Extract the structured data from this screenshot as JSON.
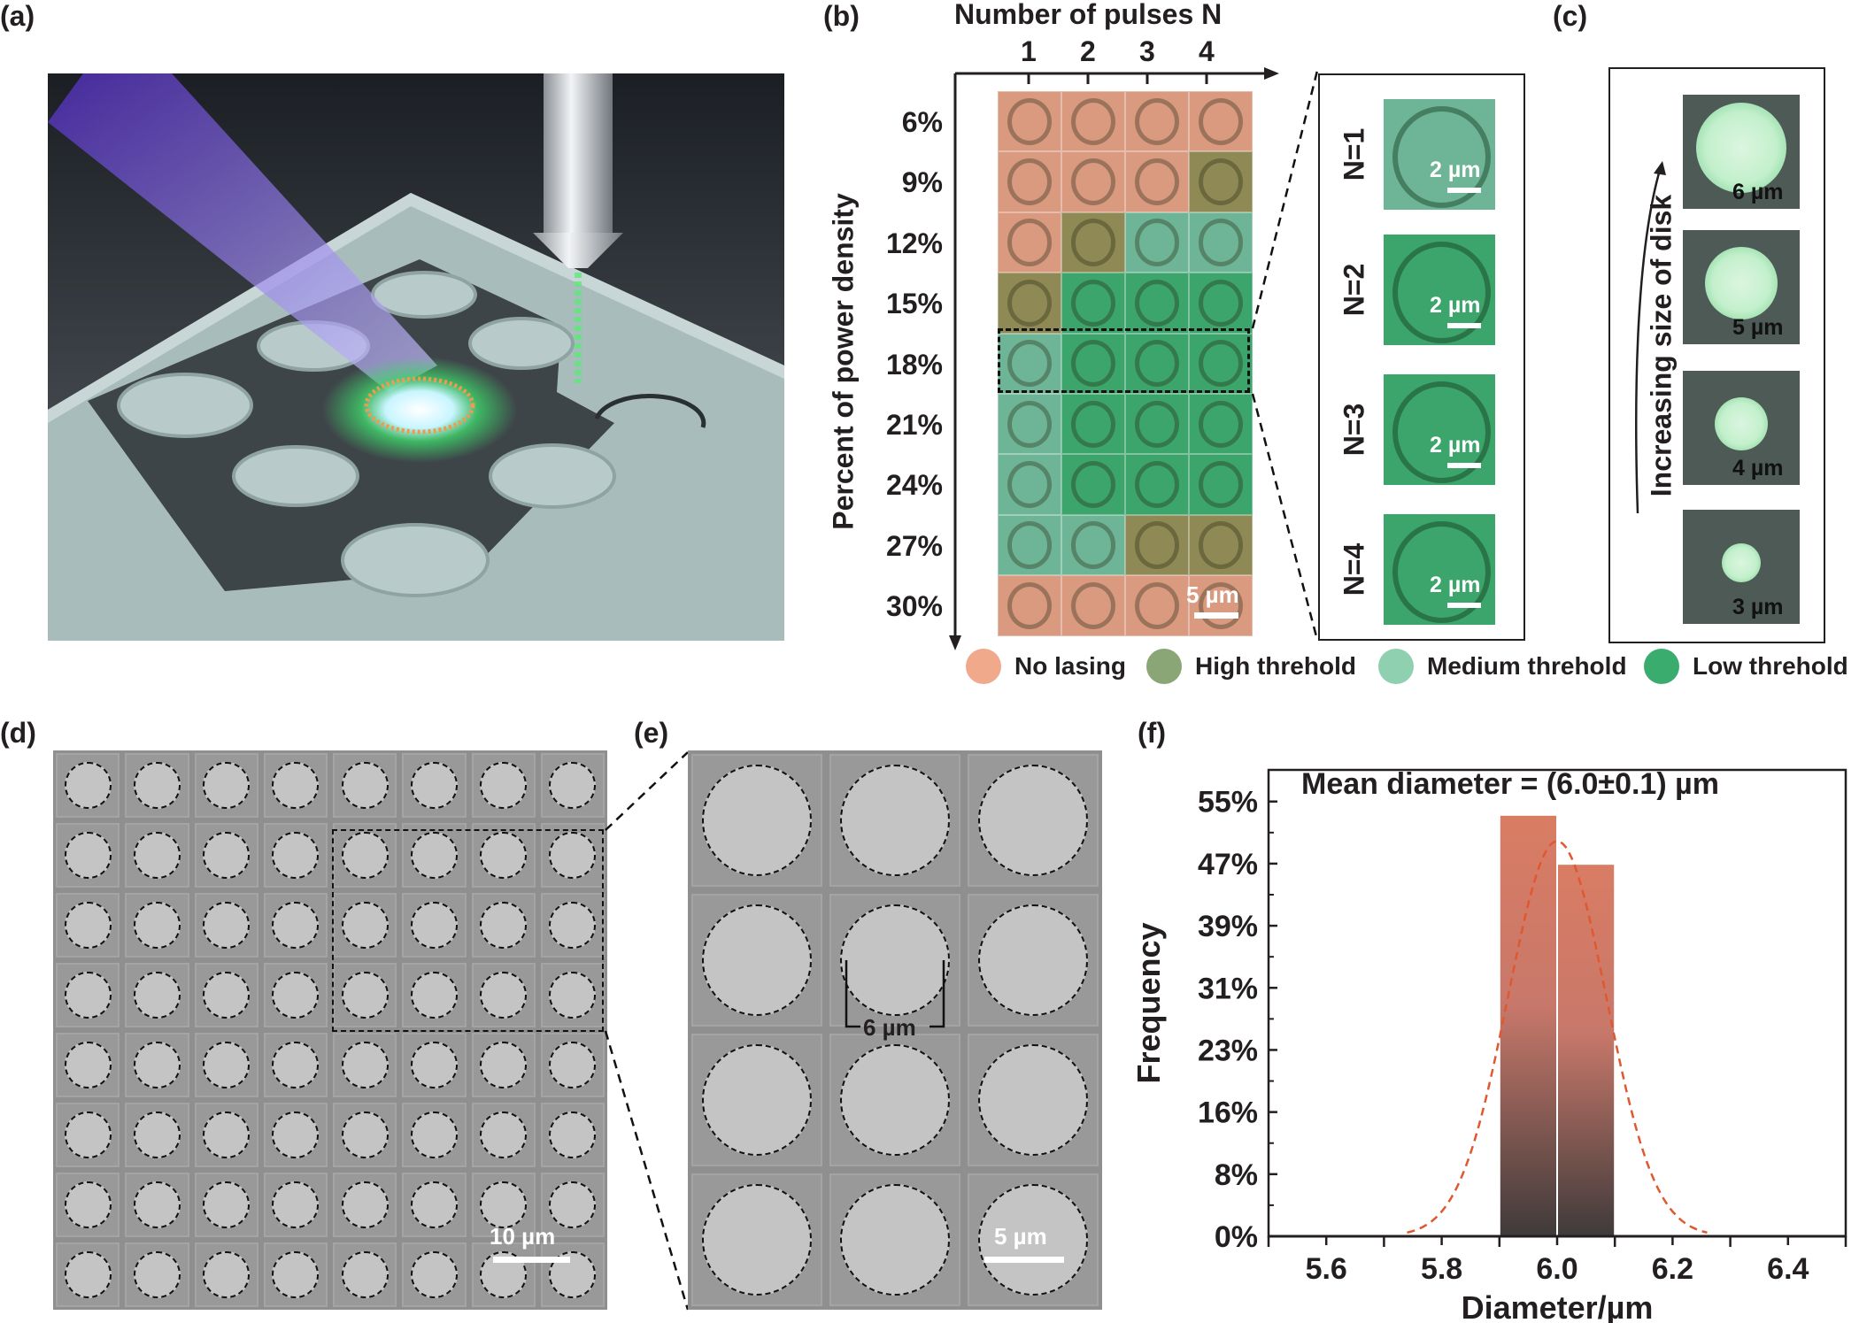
{
  "panels": {
    "a": {
      "label": "(a)"
    },
    "b": {
      "label": "(b)",
      "x_axis_title": "Number of  pulses N",
      "columns": [
        "1",
        "2",
        "3",
        "4"
      ],
      "y_axis_title": "Percent of power density",
      "rows": [
        "6%",
        "9%",
        "12%",
        "15%",
        "18%",
        "21%",
        "24%",
        "27%",
        "30%"
      ],
      "grid_states": [
        [
          "N",
          "N",
          "N",
          "N"
        ],
        [
          "N",
          "N",
          "N",
          "H"
        ],
        [
          "N",
          "H",
          "M",
          "M"
        ],
        [
          "H",
          "L",
          "L",
          "L"
        ],
        [
          "M",
          "L",
          "L",
          "L"
        ],
        [
          "M",
          "L",
          "L",
          "L"
        ],
        [
          "M",
          "L",
          "L",
          "L"
        ],
        [
          "M",
          "M",
          "H",
          "H"
        ],
        [
          "N",
          "N",
          "N",
          "N"
        ]
      ],
      "state_colors": {
        "N": "#d99a80",
        "H": "#8f8a55",
        "M": "#6db596",
        "L": "#3ba56b"
      },
      "scale_label": "5 µm",
      "inset": [
        {
          "label": "N=1",
          "scale": "2 µm",
          "color": "#6db596"
        },
        {
          "label": "N=2",
          "scale": "2 µm",
          "color": "#3ba56b"
        },
        {
          "label": "N=3",
          "scale": "2 µm",
          "color": "#3ba56b"
        },
        {
          "label": "N=4",
          "scale": "2 µm",
          "color": "#3ba56b"
        }
      ]
    },
    "c": {
      "label": "(c)",
      "axis_text": "Increasing size of disk",
      "images": [
        {
          "size": "6 µm",
          "spot": 0.78
        },
        {
          "size": "5 µm",
          "spot": 0.62
        },
        {
          "size": "4 µm",
          "spot": 0.46
        },
        {
          "size": "3 µm",
          "spot": 0.34
        }
      ]
    },
    "legend": [
      {
        "label": "No lasing",
        "color": "#f0a98a"
      },
      {
        "label": "High threhold",
        "color": "#8aa576"
      },
      {
        "label": "Medium threhold",
        "color": "#8fd0b0"
      },
      {
        "label": "Low threhold",
        "color": "#3aac6e"
      }
    ],
    "d": {
      "label": "(d)",
      "scale": "10 µm",
      "grid": 8
    },
    "e": {
      "label": "(e)",
      "scale": "5 µm",
      "dimension": "6 µm",
      "cols": 3,
      "rows": 4
    },
    "f": {
      "label": "(f)"
    }
  },
  "chart_data": {
    "type": "bar",
    "title": "Mean diameter = (6.0±0.1) µm",
    "xlabel": "Diameter/µm",
    "ylabel": "Frequency",
    "xlim": [
      5.5,
      6.5
    ],
    "ylim": [
      0,
      59
    ],
    "xticks": [
      "5.6",
      "5.8",
      "6.0",
      "6.2",
      "6.4"
    ],
    "yticks": [
      "0%",
      "8%",
      "16%",
      "23%",
      "31%",
      "39%",
      "47%",
      "55%"
    ],
    "bins": [
      [
        5.9,
        6.0
      ],
      [
        6.0,
        6.1
      ]
    ],
    "values": [
      53.2,
      47.0
    ],
    "fit": {
      "type": "gaussian",
      "mean": 6.0,
      "peak": 50,
      "sigma": 0.085
    },
    "grid": false,
    "bar_gradient": [
      "#d97c64",
      "#3f3a3a"
    ],
    "fit_color": "#e0582e"
  }
}
